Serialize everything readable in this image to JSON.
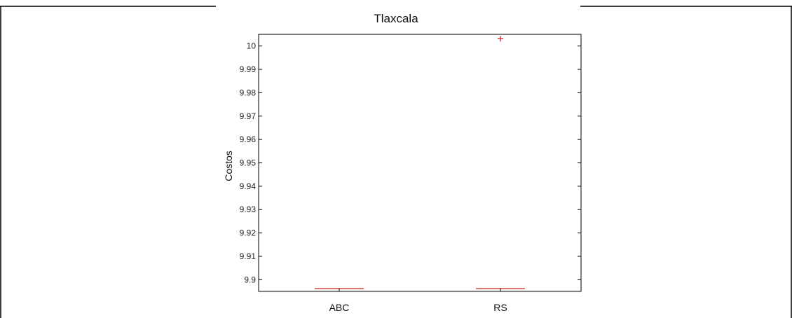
{
  "chart_data": {
    "type": "box",
    "title": "Tlaxcala",
    "xlabel": "",
    "ylabel": "Costos",
    "categories": [
      "ABC",
      "RS"
    ],
    "ylim": [
      9.895,
      10.005
    ],
    "yticks": [
      9.9,
      9.91,
      9.92,
      9.93,
      9.94,
      9.95,
      9.96,
      9.97,
      9.98,
      9.99,
      10
    ],
    "ytick_labels": [
      "9.9",
      "9.91",
      "9.92",
      "9.93",
      "9.94",
      "9.95",
      "9.96",
      "9.97",
      "9.98",
      "9.99",
      "10"
    ],
    "medians": [
      9.8962,
      9.8962
    ],
    "outliers": [
      [],
      [
        10.0031
      ]
    ],
    "grid": false,
    "colors": {
      "median": "#cc2222",
      "outlier": "#cc2222",
      "axes": "#000000"
    }
  }
}
